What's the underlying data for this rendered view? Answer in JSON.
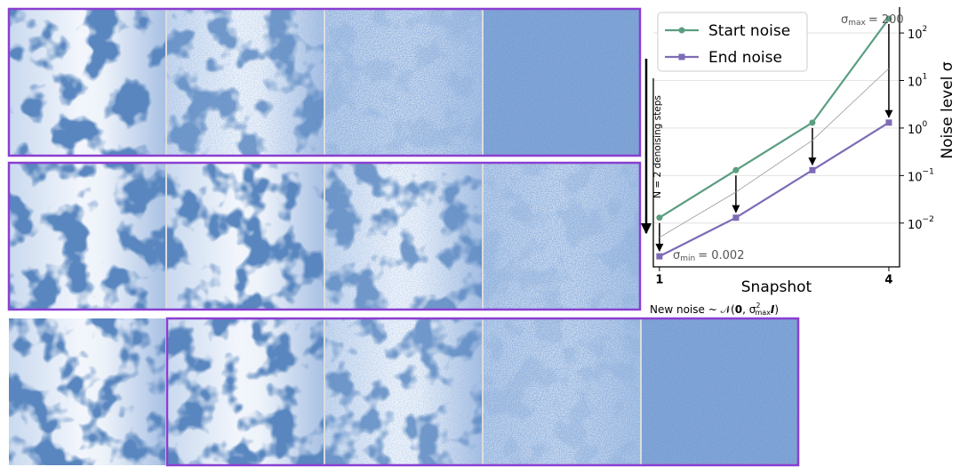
{
  "chart_data": {
    "type": "line",
    "x_label": "Snapshot",
    "y_label": "Noise level σ",
    "log_y": true,
    "grid": true,
    "legend": "upper left",
    "x": [
      1,
      2,
      3,
      4
    ],
    "xlim": [
      0.92,
      4.14
    ],
    "xticks": [
      1,
      4
    ],
    "ylim": [
      0.0012,
      350
    ],
    "yticks": [
      {
        "value": 0.01,
        "label": "10",
        "exponent": "−2"
      },
      {
        "value": 0.1,
        "label": "10",
        "exponent": "−1"
      },
      {
        "value": 1,
        "label": "10",
        "exponent": "0"
      },
      {
        "value": 10,
        "label": "10",
        "exponent": "1"
      },
      {
        "value": 100,
        "label": "10",
        "exponent": "2"
      }
    ],
    "series": [
      {
        "name": "Start noise",
        "color": "#5a9e80",
        "marker": "circle",
        "values": [
          0.013,
          0.13,
          1.3,
          200
        ]
      },
      {
        "name": "End noise",
        "color": "#7e6bb5",
        "marker": "square",
        "values": [
          0.002,
          0.013,
          0.13,
          1.3
        ]
      },
      {
        "color": "#999999",
        "values": [
          0.005,
          0.045,
          0.55,
          18
        ]
      }
    ],
    "annotations": {
      "sigma_max": {
        "symbol": "σ",
        "sub": "max",
        "text": "= 200"
      },
      "sigma_min": {
        "symbol": "σ",
        "sub": "min",
        "text": "= 0.002"
      },
      "steps": "N = 2 denoising steps",
      "new_noise": {
        "prefix": "New noise  ~ 𝒩(",
        "zero": "0",
        ", ": ", ",
        "symbol": "σ",
        "sup": "2",
        "sub": "max",
        "ident": "I",
        ")": ")"
      }
    }
  }
}
